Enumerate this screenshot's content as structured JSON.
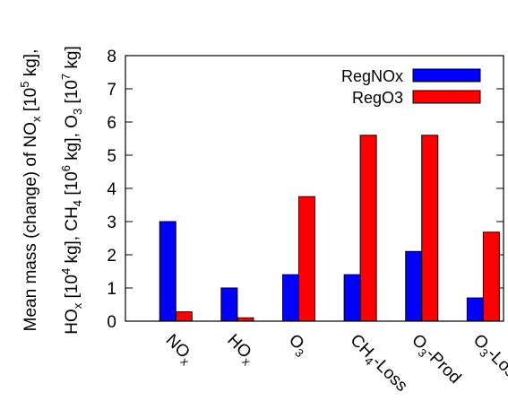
{
  "chart_data": {
    "type": "bar",
    "categories": [
      {
        "base": "NO",
        "sub": "x",
        "suffix": ""
      },
      {
        "base": "HO",
        "sub": "x",
        "suffix": ""
      },
      {
        "base": "O",
        "sub": "3",
        "suffix": ""
      },
      {
        "base": "CH",
        "sub": "4",
        "suffix": "-Loss"
      },
      {
        "base": "O",
        "sub": "3",
        "suffix": "-Prod"
      },
      {
        "base": "O",
        "sub": "3",
        "suffix": "-Loss"
      }
    ],
    "series": [
      {
        "name": "RegNOx",
        "color": "#0000ff",
        "values": [
          3.0,
          1.0,
          1.4,
          1.4,
          2.1,
          0.7
        ]
      },
      {
        "name": "RegO3",
        "color": "#ff0000",
        "values": [
          0.28,
          0.1,
          3.75,
          5.6,
          5.6,
          2.68
        ]
      }
    ],
    "ylim": [
      0,
      8
    ],
    "yticks": [
      "0",
      "1",
      "2",
      "3",
      "4",
      "5",
      "6",
      "7",
      "8"
    ],
    "ylabel_line1": {
      "a": "Mean mass (change) of NO",
      "a_sub": "x",
      "b": " [10",
      "b_sup": "5",
      "c": " kg],"
    },
    "ylabel_line2": {
      "p1": "HO",
      "p1_sub": "x",
      "p2": " [10",
      "p2_sup": "4",
      "p3": " kg], CH",
      "p3_sub": "4",
      "p4": " [10",
      "p4_sup": "6",
      "p5": " kg], O",
      "p5_sub": "3",
      "p6": " [10",
      "p6_sup": "7",
      "p7": " kg]"
    },
    "legend_position": "top-right",
    "grid": false
  }
}
